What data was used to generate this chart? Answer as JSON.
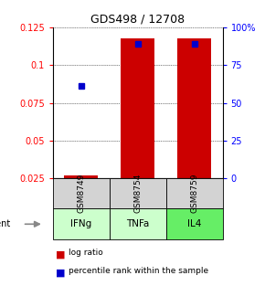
{
  "title": "GDS498 / 12708",
  "samples": [
    "GSM8749",
    "GSM8754",
    "GSM8759"
  ],
  "agents": [
    "IFNg",
    "TNFa",
    "IL4"
  ],
  "bar_values": [
    0.027,
    0.118,
    0.118
  ],
  "bar_bottom": 0.025,
  "blue_marker_values": [
    0.086,
    0.114,
    0.114
  ],
  "bar_color": "#cc0000",
  "blue_color": "#0000cc",
  "ylim_left": [
    0.025,
    0.125
  ],
  "yticks_left": [
    0.025,
    0.05,
    0.075,
    0.1,
    0.125
  ],
  "ytick_labels_left": [
    "0.025",
    "0.05",
    "0.075",
    "0.1",
    "0.125"
  ],
  "ylim_right": [
    0,
    100
  ],
  "yticks_right": [
    0,
    25,
    50,
    75,
    100
  ],
  "ytick_labels_right": [
    "0",
    "25",
    "50",
    "75",
    "100%"
  ],
  "agent_colors": [
    "#ccffcc",
    "#ccffcc",
    "#66ee66"
  ],
  "sample_box_color": "#d3d3d3",
  "bar_width": 0.6,
  "legend_log_ratio": "log ratio",
  "legend_percentile": "percentile rank within the sample"
}
